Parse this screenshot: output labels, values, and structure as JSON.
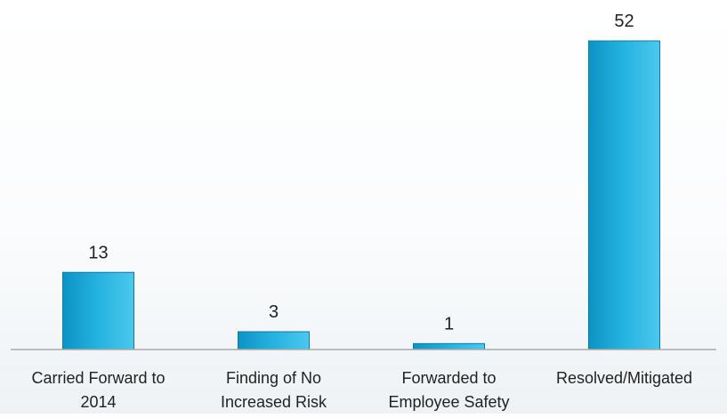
{
  "chart_data": {
    "type": "bar",
    "title": "",
    "xlabel": "",
    "ylabel": "",
    "categories": [
      [
        "Carried Forward to",
        "2014"
      ],
      [
        "Finding of No",
        "Increased Risk"
      ],
      [
        "Forwarded to",
        "Employee Safety"
      ],
      [
        "Resolved/Mitigated"
      ]
    ],
    "values": [
      13,
      3,
      1,
      52
    ],
    "data_labels": [
      "13",
      "3",
      "1",
      "52"
    ],
    "ylim": [
      0,
      52
    ],
    "grid": false,
    "legend": "none",
    "colors": {
      "bar_top": "#4cc8ec",
      "bar_mid": "#25b3e0",
      "bar_bottom": "#0d93c4",
      "bar_stroke": "#0a7aa8",
      "axis": "#a9a9a9",
      "text": "#222222"
    }
  }
}
